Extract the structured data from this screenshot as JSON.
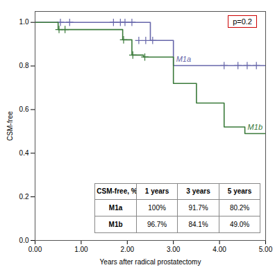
{
  "chart_data": {
    "type": "step",
    "xlabel": "Years after radical prostatectomy",
    "ylabel": "CSM-free",
    "xlim": [
      0,
      5.0
    ],
    "ylim": [
      0.0,
      1.05
    ],
    "xticks": [
      {
        "value": 0.0,
        "label": "0.00"
      },
      {
        "value": 1.0,
        "label": "1.00"
      },
      {
        "value": 2.0,
        "label": "2.00"
      },
      {
        "value": 3.0,
        "label": "3.00"
      },
      {
        "value": 4.0,
        "label": "4.00"
      },
      {
        "value": 5.0,
        "label": "5.00"
      }
    ],
    "yticks": [
      {
        "value": 0.0,
        "label": "0.0"
      },
      0.2,
      0.4,
      0.6,
      0.8,
      {
        "value": 1.0,
        "label": "1.0"
      }
    ],
    "grid": false,
    "series": [
      {
        "name": "M1a",
        "color": "#6666aa",
        "marker": "plus",
        "x": [
          0.0,
          1.55,
          2.25,
          2.5,
          3.0,
          5.0
        ],
        "values": [
          1.0,
          1.0,
          1.0,
          0.917,
          0.802,
          0.802
        ],
        "censors": {
          "x": [
            0.55,
            0.75,
            1.7,
            1.85,
            1.95,
            2.1,
            2.25,
            2.4,
            2.55,
            4.1,
            4.4,
            4.6,
            4.8
          ],
          "values": [
            1.0,
            1.0,
            1.0,
            1.0,
            1.0,
            1.0,
            0.917,
            0.917,
            0.917,
            0.802,
            0.802,
            0.802,
            0.802
          ]
        }
      },
      {
        "name": "M1b",
        "color": "#3a7a3a",
        "marker": "plus",
        "x": [
          0.0,
          0.5,
          0.72,
          1.9,
          2.1,
          2.35,
          3.0,
          3.5,
          4.1,
          4.55,
          5.0
        ],
        "values": [
          1.0,
          0.967,
          0.967,
          0.92,
          0.85,
          0.841,
          0.72,
          0.63,
          0.52,
          0.49,
          0.49
        ],
        "censors": {
          "x": [
            0.52,
            0.65,
            1.92,
            2.12,
            2.38
          ],
          "values": [
            0.967,
            0.967,
            0.92,
            0.85,
            0.841
          ]
        }
      }
    ],
    "annotations": [
      {
        "text": "p=0.2",
        "color": "#cc0000"
      }
    ],
    "table": [
      [
        "CSM-free, %",
        "1 years",
        "3 years",
        "5 years"
      ],
      [
        "M1a",
        "100%",
        "91.7%",
        "80.2%"
      ],
      [
        "M1b",
        "96.7%",
        "84.1%",
        "49.0%"
      ]
    ]
  }
}
